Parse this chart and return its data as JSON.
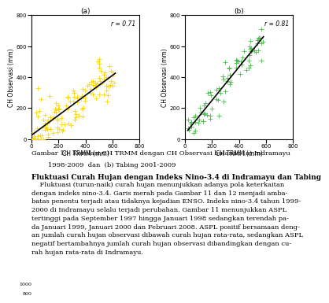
{
  "title_a": "(a)",
  "title_b": "(b)",
  "xlabel": "CH TRMM (mm)",
  "ylabel_a": "CH Observasi (mm)",
  "ylabel_b": "CH Observasi (mm)",
  "r_a": "r = 0.71",
  "r_b": "r = 0.81",
  "xlim": [
    0,
    800
  ],
  "ylim": [
    0,
    800
  ],
  "color_a": "#FFD700",
  "color_b": "#4CBB4C",
  "marker": "+",
  "markersize": 4,
  "linewidth": 1.2,
  "line_color": "black",
  "caption_line1": "Gambar 10  Korelasi CH TRMM dengan CH Observasi bulanan (a) Indramayu",
  "caption_line2": "        1998-2009  dan  (b) Tabing 2001-2009",
  "section_header": "Fluktuasi Curah Hujan dengan Indeks Nino-3.4 di Indramayu dan Tabing",
  "body_text": "    Fluktuasi (turun-naik) curah hujan menunjukkan adanya pola keterkaitan\ndengan indeks nino-3.4. Garis merah pada Gambar 11 dan 12 menjadi amba-\nbatas penentu terjadi atau tidaknya kejadian ENSO. Indeks nino-3.4 tahun 1999-\n2000 di Indramayu selalu terjadi perubahan. Gambar 11 menunjukkan ASPL\ntertinggi pada September 1997 hingga Januari 1998 sedangkan terendah pa-\nda Januari 1999, Januari 2000 dan Februari 2008. ASPL positif bersamaan deng-\nan jumlah curah hujan observasi dibawah curah hujan rata-rata, sedangkan ASPL\nnegatif bertambahnya jumlah curah hujan observasi dibandingkan dengan cu-\nrah hujan rata-rata di Indramayu.",
  "seed_a": 42,
  "seed_b": 99,
  "n_points_a": 130,
  "n_points_b": 80,
  "slope_a": 0.68,
  "intercept_a": 5,
  "slope_b": 1.05,
  "intercept_b": 30,
  "scatter_std_a": 75,
  "scatter_std_b": 55,
  "xmax_a": 620,
  "xmax_b": 580,
  "fontsize_label": 5.5,
  "fontsize_tick": 5,
  "fontsize_r": 5.5,
  "fontsize_caption": 6,
  "fontsize_header": 6.5,
  "fontsize_body": 6,
  "fontsize_sub": 6.5
}
